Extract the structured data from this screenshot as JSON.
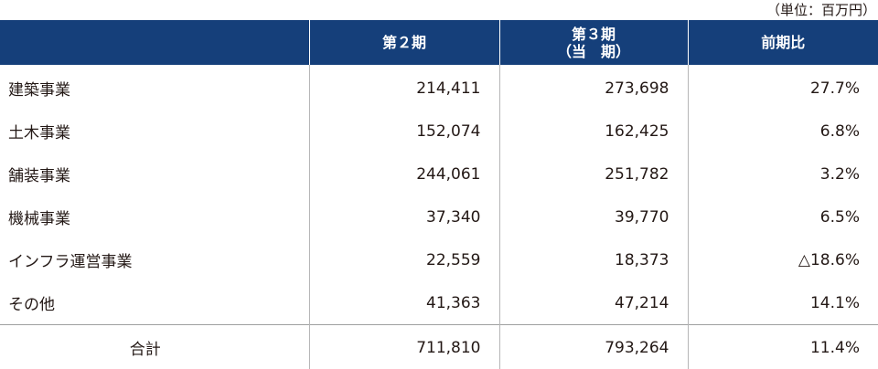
{
  "unit_label": "（単位：百万円）",
  "columns": {
    "c1": "第２期",
    "c2_line1": "第３期",
    "c2_line2": "（当　期）",
    "c3": "前期比"
  },
  "rows": [
    {
      "segment": "建築事業",
      "prev": "214,411",
      "curr": "273,698",
      "ratio": "27.7%"
    },
    {
      "segment": "土木事業",
      "prev": "152,074",
      "curr": "162,425",
      "ratio": "6.8%"
    },
    {
      "segment": "舗装事業",
      "prev": "244,061",
      "curr": "251,782",
      "ratio": "3.2%"
    },
    {
      "segment": "機械事業",
      "prev": "37,340",
      "curr": "39,770",
      "ratio": "6.5%"
    },
    {
      "segment": "インフラ運営事業",
      "prev": "22,559",
      "curr": "18,373",
      "ratio": "△18.6%"
    },
    {
      "segment": "その他",
      "prev": "41,363",
      "curr": "47,214",
      "ratio": "14.1%"
    }
  ],
  "total": {
    "label": "合計",
    "prev": "711,810",
    "curr": "793,264",
    "ratio": "11.4%"
  },
  "colors": {
    "header_bg": "#153f7a",
    "header_text": "#ffffff",
    "text": "#231815",
    "divider": "#b5b5b6"
  }
}
